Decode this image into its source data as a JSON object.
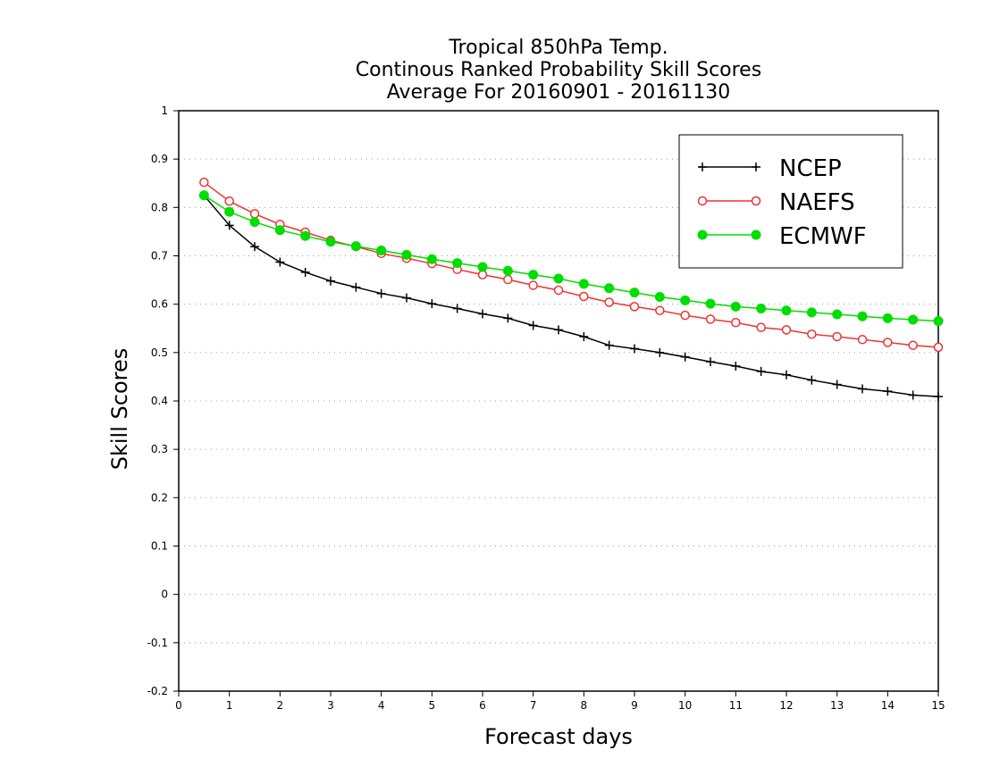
{
  "chart_data": {
    "type": "line",
    "title_lines": [
      "Tropical 850hPa Temp.",
      "Continous Ranked Probability Skill Scores",
      "Average For 20160901 - 20161130"
    ],
    "xlabel": "Forecast days",
    "ylabel": "Skill Scores",
    "xlim": [
      0,
      15
    ],
    "ylim": [
      -0.2,
      1
    ],
    "x_ticks": [
      0,
      1,
      2,
      3,
      4,
      5,
      6,
      7,
      8,
      9,
      10,
      11,
      12,
      13,
      14,
      15
    ],
    "y_ticks": [
      -0.2,
      -0.1,
      0,
      0.1,
      0.2,
      0.3,
      0.4,
      0.5,
      0.6,
      0.7,
      0.8,
      0.9,
      1
    ],
    "y_tick_labels": [
      "-0.2",
      "-0.1",
      "0",
      "0.1",
      "0.2",
      "0.3",
      "0.4",
      "0.5",
      "0.6",
      "0.7",
      "0.8",
      "0.9",
      "1"
    ],
    "grid": "horizontal dotted",
    "legend_position": "top-right",
    "x": [
      0.5,
      1,
      1.5,
      2,
      2.5,
      3,
      3.5,
      4,
      4.5,
      5,
      5.5,
      6,
      6.5,
      7,
      7.5,
      8,
      8.5,
      9,
      9.5,
      10,
      10.5,
      11,
      11.5,
      12,
      12.5,
      13,
      13.5,
      14,
      14.5,
      15
    ],
    "series": [
      {
        "name": "NCEP",
        "color": "#000000",
        "marker": "plus",
        "values": [
          0.825,
          0.763,
          0.719,
          0.687,
          0.666,
          0.648,
          0.635,
          0.622,
          0.613,
          0.601,
          0.591,
          0.58,
          0.571,
          0.556,
          0.547,
          0.533,
          0.515,
          0.508,
          0.5,
          0.491,
          0.481,
          0.472,
          0.461,
          0.454,
          0.443,
          0.434,
          0.425,
          0.42,
          0.412,
          0.409
        ]
      },
      {
        "name": "NAEFS",
        "color": "#ee3333",
        "marker": "open-circle",
        "values": [
          0.852,
          0.813,
          0.787,
          0.765,
          0.749,
          0.732,
          0.719,
          0.705,
          0.695,
          0.684,
          0.672,
          0.661,
          0.651,
          0.639,
          0.629,
          0.616,
          0.604,
          0.595,
          0.587,
          0.577,
          0.569,
          0.562,
          0.552,
          0.547,
          0.538,
          0.533,
          0.527,
          0.521,
          0.515,
          0.511
        ]
      },
      {
        "name": "ECMWF",
        "color": "#00dd00",
        "marker": "filled-circle",
        "values": [
          0.825,
          0.791,
          0.77,
          0.753,
          0.741,
          0.729,
          0.72,
          0.711,
          0.702,
          0.693,
          0.685,
          0.677,
          0.669,
          0.661,
          0.653,
          0.642,
          0.633,
          0.624,
          0.615,
          0.608,
          0.601,
          0.595,
          0.591,
          0.587,
          0.583,
          0.579,
          0.575,
          0.571,
          0.568,
          0.565
        ]
      }
    ]
  }
}
